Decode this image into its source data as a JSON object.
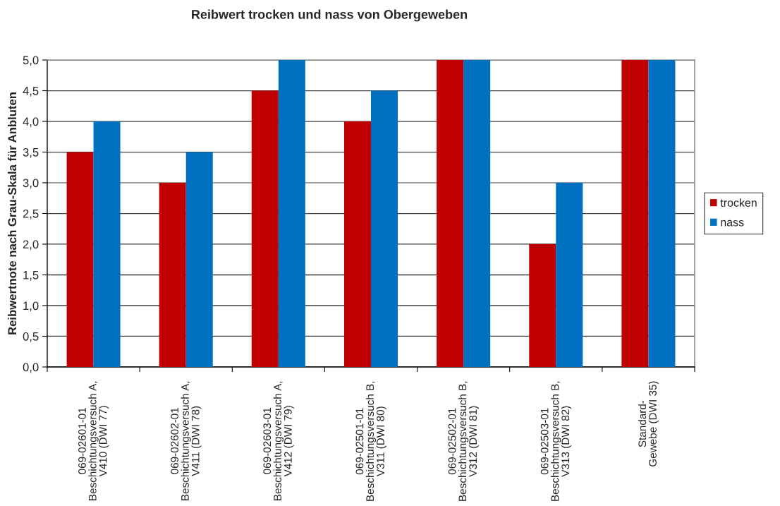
{
  "chart_data": {
    "type": "bar",
    "title": "Reibwert trocken und nass von Obergeweben",
    "ylabel": "Reibwertnote nach Grau-Skala für Anbluten",
    "categories": [
      "069-02601-01\nBeschichtungsversuch A,\nV410 (DWI 77)",
      "069-02602-01\nBeschichtungsversuch A,\nV411 (DWI 78)",
      "069-02603-01\nBeschichtungsversuch A,\nV412 (DWI 79)",
      "069-02501-01\nBeschichtungsversuch B,\nV311 (DWI 80)",
      "069-02502-01\nBeschichtungsversuch B,\nV312 (DWI 81)",
      "069-02503-01\nBeschichtungsversuch B,\nV313 (DWI 82)",
      "Standard-\nGewebe (DWI 35)"
    ],
    "series": [
      {
        "name": "trocken",
        "color": "#c00000",
        "values": [
          3.5,
          3.0,
          4.5,
          4.0,
          5.0,
          2.0,
          5.0
        ]
      },
      {
        "name": "nass",
        "color": "#0070c0",
        "values": [
          4.0,
          3.5,
          5.0,
          4.5,
          5.0,
          3.0,
          5.0
        ]
      }
    ],
    "ylim": [
      0,
      5
    ],
    "yticks": [
      {
        "value": 0,
        "label": "0,0"
      },
      {
        "value": 0.5,
        "label": "0,5"
      },
      {
        "value": 1,
        "label": "1,0"
      },
      {
        "value": 1.5,
        "label": "1,5"
      },
      {
        "value": 2,
        "label": "2,0"
      },
      {
        "value": 2.5,
        "label": "2,5"
      },
      {
        "value": 3,
        "label": "3,0"
      },
      {
        "value": 3.5,
        "label": "3,5"
      },
      {
        "value": 4,
        "label": "4,0"
      },
      {
        "value": 4.5,
        "label": "4,5"
      },
      {
        "value": 5,
        "label": "5,0"
      }
    ],
    "grid": "y",
    "legend": "right"
  }
}
